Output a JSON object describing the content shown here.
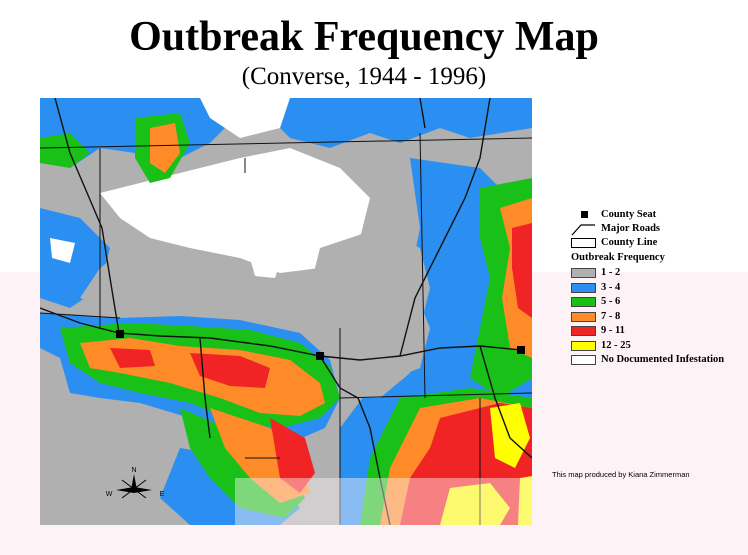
{
  "title": "Outbreak Frequency Map",
  "subtitle": "(Converse, 1944 - 1996)",
  "legend": {
    "symbols": [
      {
        "label": "County Seat",
        "icon": "county-seat-square-icon"
      },
      {
        "label": "Major Roads",
        "icon": "road-line-icon"
      },
      {
        "label": "County Line",
        "icon": "county-line-box-icon"
      }
    ],
    "heading": "Outbreak Frequency",
    "classes": [
      {
        "label": "1 - 2",
        "color": "#b0b0b0"
      },
      {
        "label": "3 - 4",
        "color": "#2a8ff0"
      },
      {
        "label": "5 - 6",
        "color": "#18c018"
      },
      {
        "label": "7 - 8",
        "color": "#ff8a28"
      },
      {
        "label": "9 - 11",
        "color": "#f02424"
      },
      {
        "label": "12 - 25",
        "color": "#ffff00"
      },
      {
        "label": "No Documented Infestation",
        "color": "#ffffff"
      }
    ]
  },
  "credit": "This map produced by Kiana Zimmerman",
  "compass": {
    "n": "N",
    "w": "W",
    "e": "E"
  }
}
